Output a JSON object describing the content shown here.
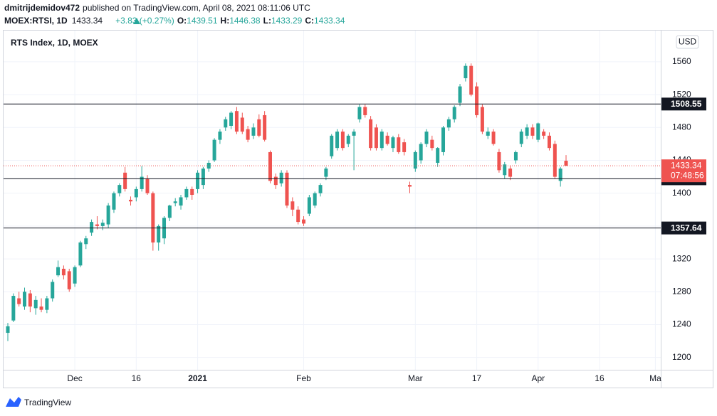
{
  "header": {
    "author": "dmitrijdemidov472",
    "published": "published on TradingView.com, April 08, 2021 08:11:06 UTC",
    "symbol": "MOEX:RTSI, 1D",
    "price": "1433.34",
    "change": "+3.83 (+0.27%)",
    "ohlc": [
      {
        "label": "O:",
        "value": "1439.51"
      },
      {
        "label": "H:",
        "value": "1446.38"
      },
      {
        "label": "L:",
        "value": "1433.29"
      },
      {
        "label": "C:",
        "value": "1433.34"
      }
    ]
  },
  "footer": {
    "brand": "TradingView"
  },
  "chart_data": {
    "type": "candlestick",
    "title": "RTS Index, 1D, MOEX",
    "currency": "USD",
    "up_color": "#26a69a",
    "down_color": "#ef5350",
    "grid": true,
    "categories": [
      null,
      null,
      null,
      null,
      null,
      null,
      null,
      null,
      null,
      null,
      null,
      null,
      "Dec",
      null,
      null,
      null,
      null,
      null,
      null,
      null,
      null,
      null,
      null,
      "16",
      null,
      null,
      null,
      null,
      null,
      null,
      null,
      null,
      null,
      null,
      "2021",
      null,
      null,
      null,
      null,
      null,
      null,
      null,
      null,
      null,
      null,
      null,
      null,
      null,
      null,
      null,
      null,
      null,
      null,
      "Feb",
      null,
      null,
      null,
      null,
      null,
      null,
      null,
      null,
      null,
      null,
      null,
      null,
      null,
      null,
      null,
      null,
      null,
      null,
      null,
      "Mar",
      null,
      null,
      null,
      null,
      null,
      null,
      null,
      null,
      null,
      null,
      "17",
      null,
      null,
      null,
      null,
      null,
      null,
      null,
      null,
      null,
      null,
      "Apr",
      null,
      null,
      null,
      null,
      null,
      null,
      null,
      null,
      null,
      null,
      "16",
      null,
      null,
      null,
      null,
      null,
      null,
      null,
      null,
      null,
      "Ma"
    ],
    "ohlc": [
      [
        1230,
        1242,
        1220,
        1238
      ],
      [
        1245,
        1278,
        1243,
        1275
      ],
      [
        1272,
        1280,
        1262,
        1265
      ],
      [
        1262,
        1285,
        1258,
        1280
      ],
      [
        1278,
        1282,
        1255,
        1262
      ],
      [
        1260,
        1275,
        1252,
        1270
      ],
      [
        1262,
        1272,
        1255,
        1258
      ],
      [
        1258,
        1275,
        1254,
        1272
      ],
      [
        1272,
        1295,
        1268,
        1292
      ],
      [
        1300,
        1318,
        1298,
        1310
      ],
      [
        1308,
        1312,
        1295,
        1300
      ],
      [
        1305,
        1308,
        1280,
        1283
      ],
      [
        1290,
        1312,
        1286,
        1310
      ],
      [
        1312,
        1342,
        1310,
        1340
      ],
      [
        1338,
        1348,
        1332,
        1345
      ],
      [
        1352,
        1368,
        1348,
        1365
      ],
      [
        1362,
        1372,
        1356,
        1360
      ],
      [
        1360,
        1368,
        1355,
        1364
      ],
      [
        1362,
        1388,
        1358,
        1385
      ],
      [
        1380,
        1402,
        1376,
        1400
      ],
      [
        1400,
        1412,
        1396,
        1410
      ],
      [
        1425,
        1432,
        1402,
        1405
      ],
      [
        1392,
        1396,
        1385,
        1390
      ],
      [
        1395,
        1408,
        1390,
        1405
      ],
      [
        1405,
        1433,
        1402,
        1420
      ],
      [
        1418,
        1422,
        1398,
        1400
      ],
      [
        1400,
        1402,
        1330,
        1340
      ],
      [
        1340,
        1362,
        1330,
        1360
      ],
      [
        1345,
        1372,
        1338,
        1370
      ],
      [
        1370,
        1386,
        1366,
        1385
      ],
      [
        1388,
        1394,
        1384,
        1390
      ],
      [
        1385,
        1398,
        1380,
        1395
      ],
      [
        1395,
        1408,
        1392,
        1405
      ],
      [
        1405,
        1408,
        1392,
        1398
      ],
      [
        1405,
        1428,
        1400,
        1425
      ],
      [
        1410,
        1432,
        1405,
        1430
      ],
      [
        1430,
        1440,
        1426,
        1437
      ],
      [
        1440,
        1467,
        1438,
        1465
      ],
      [
        1465,
        1478,
        1460,
        1475
      ],
      [
        1480,
        1493,
        1476,
        1490
      ],
      [
        1482,
        1500,
        1478,
        1498
      ],
      [
        1500,
        1505,
        1472,
        1475
      ],
      [
        1492,
        1498,
        1472,
        1475
      ],
      [
        1478,
        1482,
        1462,
        1465
      ],
      [
        1470,
        1485,
        1466,
        1480
      ],
      [
        1490,
        1496,
        1468,
        1470
      ],
      [
        1495,
        1500,
        1463,
        1465
      ],
      [
        1450,
        1452,
        1412,
        1415
      ],
      [
        1420,
        1424,
        1405,
        1410
      ],
      [
        1412,
        1428,
        1408,
        1425
      ],
      [
        1425,
        1428,
        1382,
        1385
      ],
      [
        1390,
        1395,
        1372,
        1380
      ],
      [
        1380,
        1384,
        1362,
        1365
      ],
      [
        1368,
        1372,
        1360,
        1363
      ],
      [
        1375,
        1398,
        1372,
        1395
      ],
      [
        1385,
        1402,
        1382,
        1400
      ],
      [
        1400,
        1412,
        1396,
        1410
      ],
      [
        1420,
        1432,
        1416,
        1430
      ],
      [
        1445,
        1472,
        1442,
        1470
      ],
      [
        1455,
        1478,
        1452,
        1475
      ],
      [
        1475,
        1478,
        1452,
        1455
      ],
      [
        1460,
        1472,
        1456,
        1470
      ],
      [
        1470,
        1478,
        1428,
        1475
      ],
      [
        1490,
        1508,
        1486,
        1505
      ],
      [
        1505,
        1508,
        1492,
        1495
      ],
      [
        1490,
        1494,
        1452,
        1455
      ],
      [
        1480,
        1484,
        1452,
        1455
      ],
      [
        1455,
        1478,
        1452,
        1475
      ],
      [
        1470,
        1474,
        1458,
        1460
      ],
      [
        1455,
        1470,
        1450,
        1468
      ],
      [
        1468,
        1472,
        1448,
        1450
      ],
      [
        1462,
        1466,
        1446,
        1450
      ],
      [
        1410,
        1414,
        1400,
        1408
      ],
      [
        1430,
        1452,
        1426,
        1450
      ],
      [
        1440,
        1462,
        1436,
        1460
      ],
      [
        1460,
        1478,
        1456,
        1475
      ],
      [
        1465,
        1470,
        1452,
        1455
      ],
      [
        1437,
        1456,
        1432,
        1455
      ],
      [
        1450,
        1482,
        1446,
        1480
      ],
      [
        1480,
        1493,
        1476,
        1490
      ],
      [
        1490,
        1507,
        1486,
        1505
      ],
      [
        1510,
        1533,
        1506,
        1530
      ],
      [
        1540,
        1558,
        1536,
        1555
      ],
      [
        1555,
        1558,
        1518,
        1520
      ],
      [
        1530,
        1535,
        1492,
        1495
      ],
      [
        1505,
        1508,
        1472,
        1475
      ],
      [
        1470,
        1480,
        1466,
        1475
      ],
      [
        1475,
        1478,
        1458,
        1460
      ],
      [
        1450,
        1454,
        1425,
        1428
      ],
      [
        1422,
        1438,
        1418,
        1435
      ],
      [
        1430,
        1434,
        1416,
        1420
      ],
      [
        1440,
        1452,
        1436,
        1450
      ],
      [
        1460,
        1478,
        1456,
        1475
      ],
      [
        1470,
        1484,
        1466,
        1480
      ],
      [
        1480,
        1484,
        1466,
        1470
      ],
      [
        1465,
        1486,
        1462,
        1485
      ],
      [
        1475,
        1478,
        1466,
        1470
      ],
      [
        1470,
        1474,
        1452,
        1455
      ],
      [
        1460,
        1464,
        1418,
        1420
      ],
      [
        1415,
        1432,
        1408,
        1430
      ],
      [
        1439.51,
        1446.38,
        1433.29,
        1433.34
      ],
      null,
      null,
      null,
      null,
      null,
      null,
      null,
      null,
      null,
      null,
      null,
      null,
      null,
      null,
      null,
      null
    ],
    "ylim": [
      1185,
      1598
    ],
    "yticks": [
      1200,
      1240,
      1280,
      1320,
      1360,
      1400,
      1440,
      1480,
      1520,
      1560
    ],
    "horizontal_lines": [
      1508.55,
      1417.55,
      1357.64
    ],
    "last_price": 1433.34,
    "countdown": "07:48:56"
  }
}
